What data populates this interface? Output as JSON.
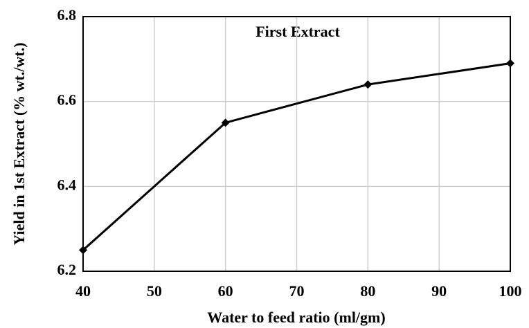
{
  "chart_data": {
    "type": "line",
    "title": "First Extract",
    "x_label": "Water to feed ratio (ml/gm)",
    "y_label": "Yield in 1st Extract  (% wt./wt.)",
    "x": [
      40,
      60,
      80,
      100
    ],
    "series": [
      {
        "name": "First Extract",
        "color": "#000000",
        "values": [
          6.25,
          6.55,
          6.64,
          6.69
        ]
      }
    ],
    "xlim": [
      40,
      100
    ],
    "xticks": [
      40,
      50,
      60,
      70,
      80,
      90,
      100
    ],
    "ylim": [
      6.2,
      6.8
    ],
    "yticks": [
      6.2,
      6.4,
      6.6,
      6.8
    ],
    "grid": true
  }
}
